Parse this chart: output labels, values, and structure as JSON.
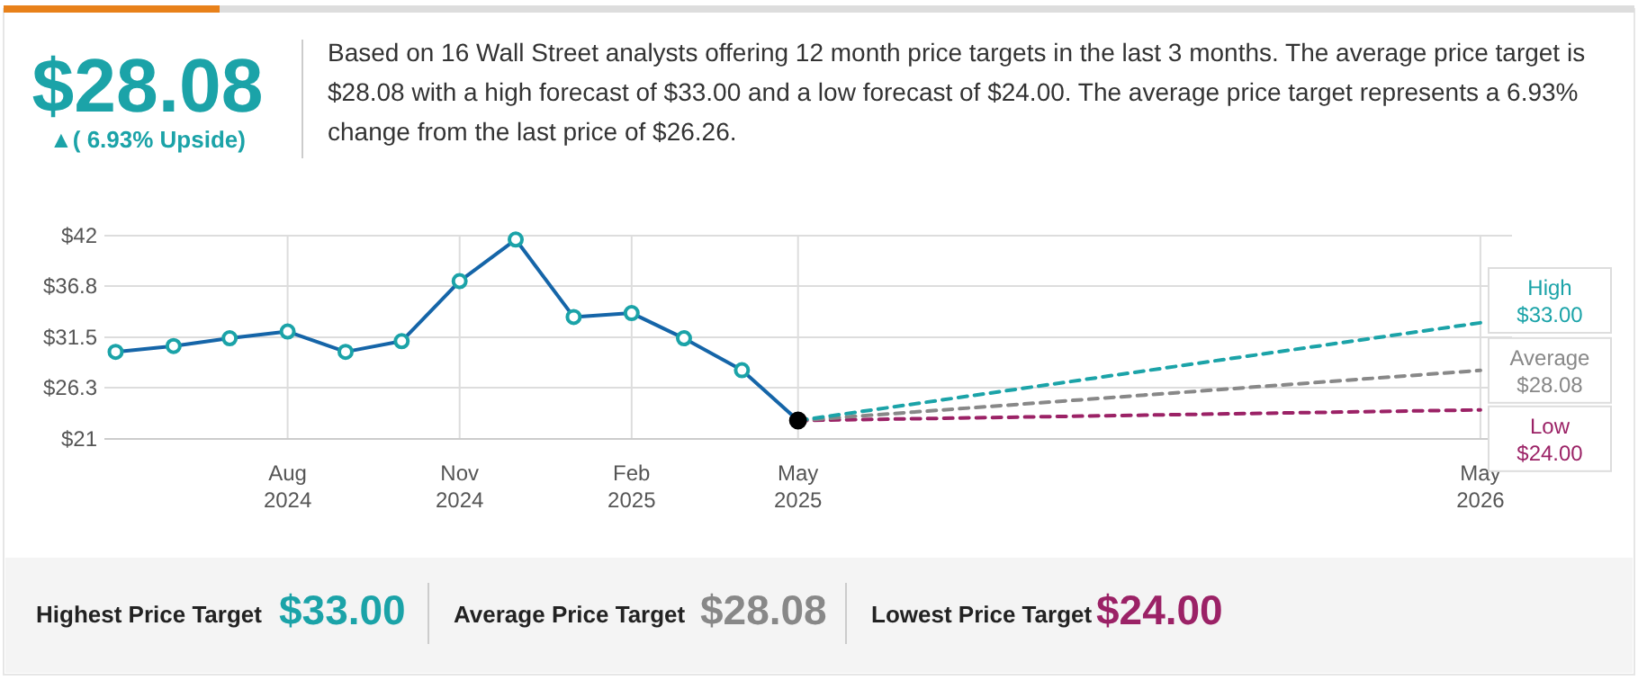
{
  "chart_data": {
    "type": "line",
    "title": "$28.08",
    "subtitle": "▲( 6.93% Upside)",
    "annotations": [
      "Based on 16 Wall Street analysts offering 12 month price targets in the last 3 months. The average price target is $28.08 with a high forecast of $33.00 and a low forecast of $24.00. The average price target represents a 6.93% change from the last price of $26.26.",
      "Highest Price Target",
      "$33.00",
      "Average Price Target",
      "$28.08",
      "Lowest Price Target",
      "$24.00"
    ],
    "x": [
      "2024-05",
      "2024-06",
      "2024-07",
      "2024-08",
      "2024-09",
      "2024-10",
      "2024-11",
      "2024-12",
      "2025-01",
      "2025-02",
      "2025-03",
      "2025-04",
      "2025-05"
    ],
    "series": [
      {
        "color": "#1565a8",
        "marker": "circle",
        "line_style": "solid",
        "values": [
          30.0,
          30.6,
          31.4,
          32.1,
          30.0,
          31.1,
          37.3,
          41.6,
          33.6,
          34.0,
          31.4,
          28.1,
          22.9
        ]
      },
      {
        "name": "High",
        "color": "#1ba3a8",
        "marker": "none",
        "line_style": "dashed",
        "x": [
          "2025-05",
          "2026-05"
        ],
        "values": [
          22.9,
          33.0
        ],
        "value_labels": [
          null,
          "$33.00"
        ]
      },
      {
        "name": "Average",
        "color": "#888888",
        "marker": "none",
        "line_style": "dashed",
        "x": [
          "2025-05",
          "2026-05"
        ],
        "values": [
          22.9,
          28.08
        ],
        "value_labels": [
          null,
          "$28.08"
        ]
      },
      {
        "name": "Low",
        "color": "#9b2266",
        "marker": "none",
        "line_style": "dashed",
        "x": [
          "2025-05",
          "2026-05"
        ],
        "values": [
          22.9,
          24.0
        ],
        "value_labels": [
          null,
          "$24.00"
        ]
      }
    ],
    "xlim": [
      "2024-04-25",
      "2026-05-15"
    ],
    "xticks": [
      {
        "value": "2024-08",
        "label": "Aug\n2024"
      },
      {
        "value": "2024-11",
        "label": "Nov\n2024"
      },
      {
        "value": "2025-02",
        "label": "Feb\n2025"
      },
      {
        "value": "2025-05",
        "label": "May\n2025"
      },
      {
        "value": "2026-05",
        "label": "May\n2026"
      }
    ],
    "ylim": [
      21,
      42
    ],
    "yticks": [
      {
        "value": 21,
        "label": "$21"
      },
      {
        "value": 26.3,
        "label": "$26.3"
      },
      {
        "value": 31.5,
        "label": "$31.5"
      },
      {
        "value": 36.8,
        "label": "$36.8"
      },
      {
        "value": 42,
        "label": "$42"
      }
    ],
    "grid": true
  }
}
